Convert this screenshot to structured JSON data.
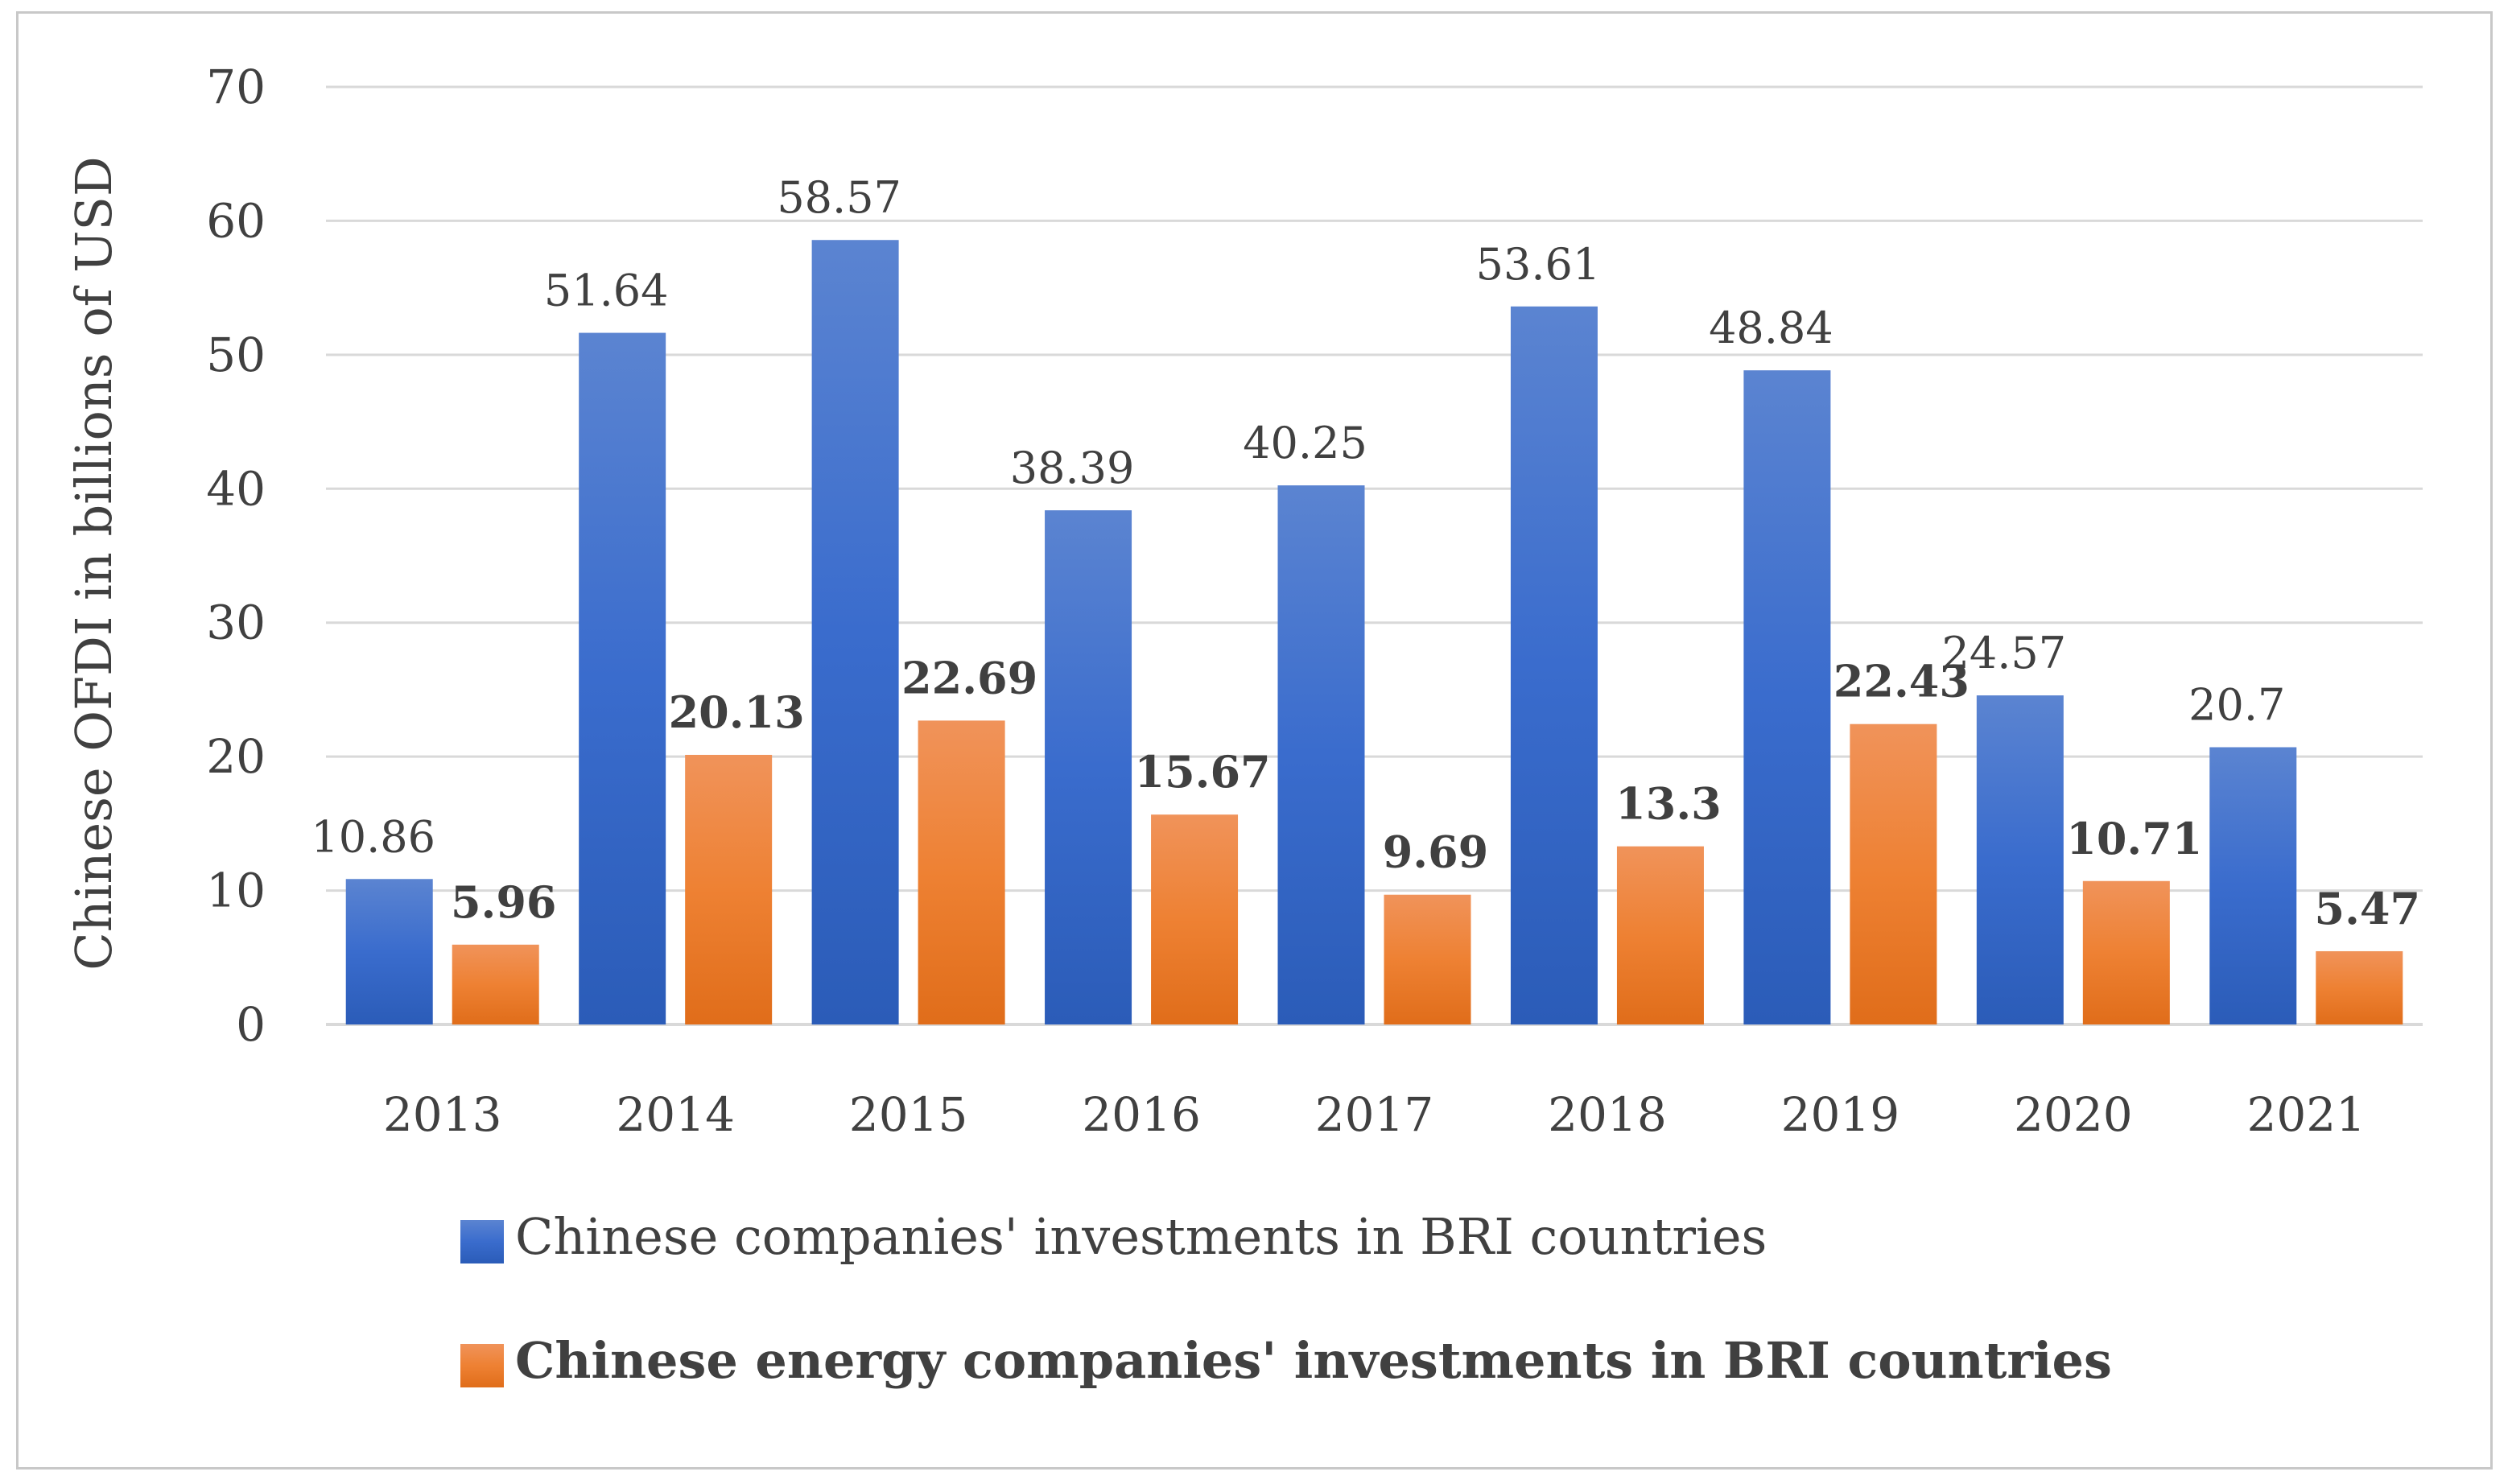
{
  "chart_data": {
    "type": "bar",
    "title": "",
    "xlabel": "",
    "ylabel": "Chinese OFDI in billions of USD",
    "ylim": [
      0,
      70
    ],
    "yticks": [
      0,
      10,
      20,
      30,
      40,
      50,
      60,
      70
    ],
    "grid": true,
    "legend_position": "bottom",
    "categories": [
      "2013",
      "2014",
      "2015",
      "2016",
      "2017",
      "2018",
      "2019",
      "2020",
      "2021"
    ],
    "series": [
      {
        "name": "Chinese companies' investments in BRI countries",
        "color": "#4472c4",
        "label_bold": false,
        "values": [
          10.86,
          51.64,
          58.57,
          38.39,
          40.25,
          53.61,
          48.84,
          24.57,
          20.7
        ],
        "labels": [
          "10.86",
          "51.64",
          "58.57",
          "38.39",
          "40.25",
          "53.61",
          "48.84",
          "24.57",
          "20.7"
        ]
      },
      {
        "name": "Chinese energy companies' investments in BRI countries",
        "color": "#ed7d31",
        "label_bold": true,
        "values": [
          5.96,
          20.13,
          22.69,
          15.67,
          9.69,
          13.3,
          22.43,
          10.71,
          5.47
        ],
        "labels": [
          "5.96",
          "20.13",
          "22.69",
          "15.67",
          "9.69",
          "13.3",
          "22.43",
          "10.71",
          "5.47"
        ]
      }
    ]
  }
}
